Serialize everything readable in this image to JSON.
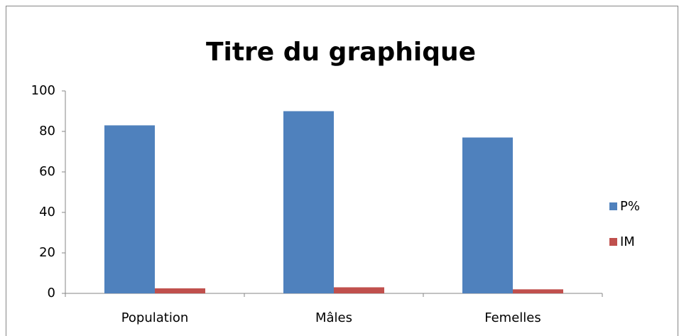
{
  "chart_data": {
    "type": "bar",
    "title": "Titre du graphique",
    "categories": [
      "Population",
      "Mâles",
      "Femelles"
    ],
    "series": [
      {
        "name": "P%",
        "color": "#4f81bd",
        "values": [
          83,
          90,
          77
        ]
      },
      {
        "name": "IM",
        "color": "#c0504d",
        "values": [
          2.5,
          3,
          2
        ]
      }
    ],
    "ylim": [
      0,
      100
    ],
    "yticks": [
      0,
      20,
      40,
      60,
      80,
      100
    ],
    "grid": false,
    "legend": "right"
  }
}
